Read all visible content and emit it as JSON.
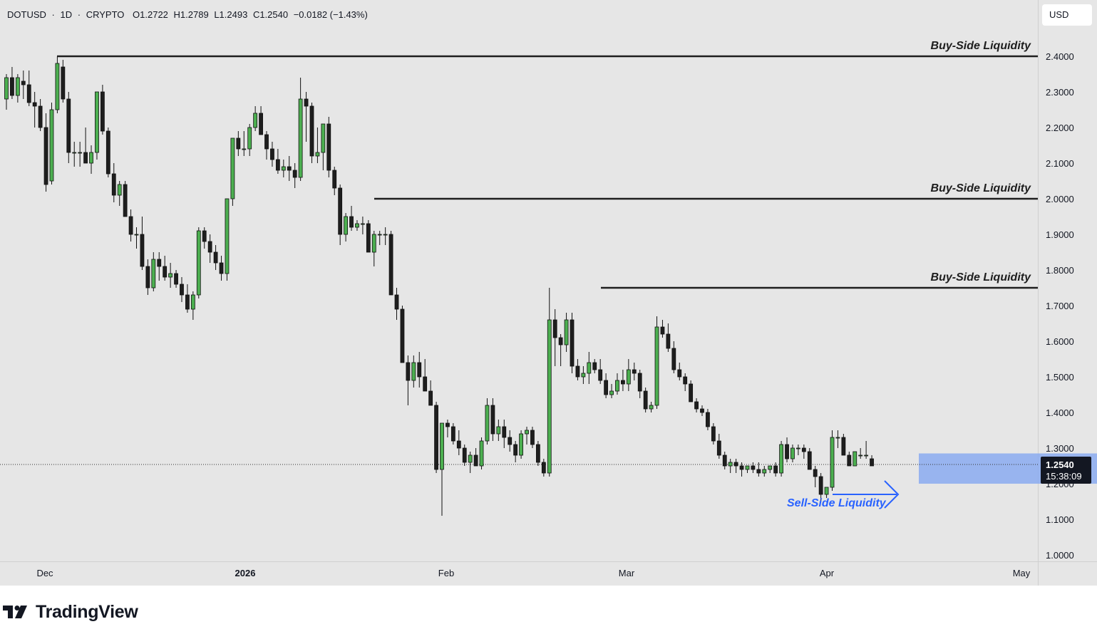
{
  "header": {
    "symbol": "DOTUSD",
    "sep1": "·",
    "interval": "1D",
    "sep2": "·",
    "market": "CRYPTO",
    "open": "O1.2722",
    "high": "H1.2789",
    "low": "L1.2493",
    "close": "C1.2540",
    "change": "−0.0182 (−1.43%)"
  },
  "currency": "USD",
  "price_tag": {
    "price": "1.2540",
    "countdown": "15:38:09"
  },
  "brand": {
    "name": "TradingView"
  },
  "annotations": {
    "buy_side_label": "Buy-Side Liquidity",
    "sell_side_label": "Sell-Side Liquidity"
  },
  "colors": {
    "background": "#e6e6e6",
    "bull": "#4caf50",
    "bear": "#1e1e1e",
    "sell_side": "#2962ff",
    "zone": "#8aaaf0"
  },
  "chart_data": {
    "type": "candlestick",
    "y_ticks": [
      "2.4000",
      "2.3000",
      "2.2000",
      "2.1000",
      "2.0000",
      "1.9000",
      "1.8000",
      "1.7000",
      "1.6000",
      "1.5000",
      "1.4000",
      "1.3000",
      "1.2000",
      "1.1000",
      "1.0000"
    ],
    "x_ticks": [
      "Dec",
      "2026",
      "Feb",
      "Mar",
      "Apr",
      "May"
    ],
    "ylim": [
      1.0,
      2.4
    ],
    "buy_side_liquidity_levels": [
      2.4,
      2.0,
      1.75
    ],
    "sell_side_liquidity_level": 1.21,
    "zone": {
      "low": 1.2,
      "high": 1.285
    },
    "last_price": 1.254,
    "candles": [
      [
        2.28,
        2.35,
        2.25,
        2.34
      ],
      [
        2.34,
        2.37,
        2.28,
        2.29
      ],
      [
        2.29,
        2.35,
        2.27,
        2.34
      ],
      [
        2.33,
        2.36,
        2.28,
        2.32
      ],
      [
        2.32,
        2.36,
        2.26,
        2.27
      ],
      [
        2.27,
        2.3,
        2.2,
        2.26
      ],
      [
        2.26,
        2.28,
        2.19,
        2.2
      ],
      [
        2.2,
        2.24,
        2.02,
        2.04
      ],
      [
        2.05,
        2.27,
        2.04,
        2.25
      ],
      [
        2.25,
        2.4,
        2.24,
        2.38
      ],
      [
        2.37,
        2.39,
        2.27,
        2.28
      ],
      [
        2.28,
        2.3,
        2.1,
        2.13
      ],
      [
        2.13,
        2.16,
        2.09,
        2.13
      ],
      [
        2.13,
        2.16,
        2.09,
        2.13
      ],
      [
        2.13,
        2.2,
        2.1,
        2.1
      ],
      [
        2.1,
        2.15,
        2.07,
        2.13
      ],
      [
        2.13,
        2.29,
        2.11,
        2.3
      ],
      [
        2.3,
        2.32,
        2.18,
        2.19
      ],
      [
        2.19,
        2.2,
        2.06,
        2.07
      ],
      [
        2.07,
        2.1,
        1.99,
        2.01
      ],
      [
        2.01,
        2.05,
        1.98,
        2.04
      ],
      [
        2.04,
        2.05,
        1.95,
        1.95
      ],
      [
        1.95,
        1.97,
        1.88,
        1.9
      ],
      [
        1.9,
        1.92,
        1.86,
        1.9
      ],
      [
        1.9,
        1.95,
        1.8,
        1.81
      ],
      [
        1.81,
        1.83,
        1.73,
        1.75
      ],
      [
        1.75,
        1.85,
        1.74,
        1.83
      ],
      [
        1.83,
        1.85,
        1.77,
        1.81
      ],
      [
        1.81,
        1.84,
        1.77,
        1.78
      ],
      [
        1.78,
        1.82,
        1.75,
        1.79
      ],
      [
        1.79,
        1.8,
        1.75,
        1.76
      ],
      [
        1.76,
        1.78,
        1.71,
        1.73
      ],
      [
        1.73,
        1.76,
        1.68,
        1.69
      ],
      [
        1.69,
        1.74,
        1.66,
        1.73
      ],
      [
        1.73,
        1.92,
        1.72,
        1.91
      ],
      [
        1.91,
        1.92,
        1.86,
        1.88
      ],
      [
        1.88,
        1.9,
        1.82,
        1.85
      ],
      [
        1.85,
        1.87,
        1.8,
        1.82
      ],
      [
        1.82,
        1.84,
        1.77,
        1.79
      ],
      [
        1.79,
        2.0,
        1.77,
        2.0
      ],
      [
        2.0,
        2.17,
        1.98,
        2.17
      ],
      [
        2.17,
        2.19,
        2.12,
        2.14
      ],
      [
        2.14,
        2.19,
        2.12,
        2.14
      ],
      [
        2.14,
        2.21,
        2.12,
        2.2
      ],
      [
        2.2,
        2.26,
        2.19,
        2.24
      ],
      [
        2.24,
        2.26,
        2.18,
        2.18
      ],
      [
        2.18,
        2.19,
        2.11,
        2.14
      ],
      [
        2.14,
        2.16,
        2.09,
        2.11
      ],
      [
        2.11,
        2.14,
        2.07,
        2.08
      ],
      [
        2.08,
        2.11,
        2.06,
        2.09
      ],
      [
        2.09,
        2.12,
        2.05,
        2.08
      ],
      [
        2.08,
        2.1,
        2.03,
        2.06
      ],
      [
        2.06,
        2.34,
        2.05,
        2.28
      ],
      [
        2.28,
        2.3,
        2.16,
        2.26
      ],
      [
        2.26,
        2.27,
        2.1,
        2.12
      ],
      [
        2.12,
        2.2,
        2.1,
        2.13
      ],
      [
        2.13,
        2.21,
        2.08,
        2.21
      ],
      [
        2.21,
        2.23,
        2.06,
        2.08
      ],
      [
        2.08,
        2.09,
        2.01,
        2.03
      ],
      [
        2.03,
        2.04,
        1.87,
        1.9
      ],
      [
        1.9,
        1.96,
        1.88,
        1.95
      ],
      [
        1.95,
        1.98,
        1.91,
        1.92
      ],
      [
        1.92,
        1.94,
        1.91,
        1.93
      ],
      [
        1.93,
        1.95,
        1.9,
        1.93
      ],
      [
        1.93,
        1.94,
        1.85,
        1.85
      ],
      [
        1.85,
        1.91,
        1.81,
        1.9
      ],
      [
        1.9,
        1.91,
        1.87,
        1.9
      ],
      [
        1.9,
        1.92,
        1.87,
        1.9
      ],
      [
        1.9,
        1.91,
        1.73,
        1.73
      ],
      [
        1.73,
        1.75,
        1.66,
        1.69
      ],
      [
        1.69,
        1.7,
        1.54,
        1.54
      ],
      [
        1.54,
        1.56,
        1.42,
        1.49
      ],
      [
        1.49,
        1.56,
        1.47,
        1.54
      ],
      [
        1.54,
        1.57,
        1.47,
        1.5
      ],
      [
        1.5,
        1.55,
        1.47,
        1.46
      ],
      [
        1.46,
        1.49,
        1.42,
        1.42
      ],
      [
        1.42,
        1.43,
        1.23,
        1.24
      ],
      [
        1.24,
        1.37,
        1.11,
        1.37
      ],
      [
        1.37,
        1.38,
        1.33,
        1.36
      ],
      [
        1.36,
        1.37,
        1.31,
        1.32
      ],
      [
        1.32,
        1.35,
        1.28,
        1.3
      ],
      [
        1.3,
        1.31,
        1.25,
        1.26
      ],
      [
        1.26,
        1.29,
        1.23,
        1.28
      ],
      [
        1.28,
        1.3,
        1.25,
        1.25
      ],
      [
        1.25,
        1.33,
        1.24,
        1.32
      ],
      [
        1.32,
        1.44,
        1.31,
        1.42
      ],
      [
        1.42,
        1.44,
        1.32,
        1.34
      ],
      [
        1.34,
        1.38,
        1.32,
        1.36
      ],
      [
        1.36,
        1.38,
        1.3,
        1.33
      ],
      [
        1.33,
        1.35,
        1.29,
        1.31
      ],
      [
        1.31,
        1.32,
        1.26,
        1.28
      ],
      [
        1.28,
        1.35,
        1.27,
        1.34
      ],
      [
        1.34,
        1.36,
        1.31,
        1.35
      ],
      [
        1.35,
        1.36,
        1.3,
        1.31
      ],
      [
        1.31,
        1.32,
        1.25,
        1.26
      ],
      [
        1.26,
        1.27,
        1.22,
        1.23
      ],
      [
        1.23,
        1.75,
        1.22,
        1.66
      ],
      [
        1.66,
        1.69,
        1.53,
        1.61
      ],
      [
        1.61,
        1.62,
        1.53,
        1.59
      ],
      [
        1.59,
        1.68,
        1.57,
        1.66
      ],
      [
        1.66,
        1.68,
        1.51,
        1.53
      ],
      [
        1.53,
        1.55,
        1.49,
        1.5
      ],
      [
        1.5,
        1.53,
        1.48,
        1.51
      ],
      [
        1.51,
        1.57,
        1.48,
        1.54
      ],
      [
        1.54,
        1.55,
        1.51,
        1.52
      ],
      [
        1.52,
        1.55,
        1.48,
        1.49
      ],
      [
        1.49,
        1.51,
        1.44,
        1.45
      ],
      [
        1.45,
        1.48,
        1.44,
        1.46
      ],
      [
        1.46,
        1.51,
        1.45,
        1.49
      ],
      [
        1.49,
        1.52,
        1.46,
        1.48
      ],
      [
        1.48,
        1.55,
        1.46,
        1.52
      ],
      [
        1.52,
        1.54,
        1.49,
        1.51
      ],
      [
        1.51,
        1.52,
        1.44,
        1.46
      ],
      [
        1.46,
        1.47,
        1.4,
        1.41
      ],
      [
        1.41,
        1.43,
        1.4,
        1.42
      ],
      [
        1.42,
        1.67,
        1.41,
        1.64
      ],
      [
        1.64,
        1.66,
        1.61,
        1.62
      ],
      [
        1.62,
        1.65,
        1.57,
        1.58
      ],
      [
        1.58,
        1.6,
        1.51,
        1.52
      ],
      [
        1.52,
        1.54,
        1.49,
        1.5
      ],
      [
        1.5,
        1.51,
        1.46,
        1.48
      ],
      [
        1.48,
        1.49,
        1.43,
        1.43
      ],
      [
        1.43,
        1.44,
        1.4,
        1.41
      ],
      [
        1.41,
        1.42,
        1.39,
        1.4
      ],
      [
        1.4,
        1.41,
        1.35,
        1.36
      ],
      [
        1.36,
        1.37,
        1.31,
        1.32
      ],
      [
        1.32,
        1.34,
        1.27,
        1.28
      ],
      [
        1.28,
        1.29,
        1.24,
        1.25
      ],
      [
        1.25,
        1.27,
        1.23,
        1.26
      ],
      [
        1.26,
        1.27,
        1.23,
        1.25
      ],
      [
        1.25,
        1.26,
        1.22,
        1.24
      ],
      [
        1.24,
        1.25,
        1.23,
        1.25
      ],
      [
        1.25,
        1.26,
        1.23,
        1.24
      ],
      [
        1.24,
        1.26,
        1.22,
        1.23
      ],
      [
        1.23,
        1.25,
        1.22,
        1.24
      ],
      [
        1.24,
        1.25,
        1.23,
        1.25
      ],
      [
        1.25,
        1.26,
        1.22,
        1.23
      ],
      [
        1.23,
        1.32,
        1.22,
        1.31
      ],
      [
        1.31,
        1.33,
        1.26,
        1.27
      ],
      [
        1.27,
        1.31,
        1.26,
        1.3
      ],
      [
        1.3,
        1.31,
        1.28,
        1.3
      ],
      [
        1.3,
        1.31,
        1.27,
        1.29
      ],
      [
        1.29,
        1.3,
        1.24,
        1.24
      ],
      [
        1.24,
        1.25,
        1.19,
        1.22
      ],
      [
        1.22,
        1.23,
        1.15,
        1.17
      ],
      [
        1.17,
        1.19,
        1.16,
        1.19
      ],
      [
        1.19,
        1.35,
        1.18,
        1.33
      ],
      [
        1.33,
        1.35,
        1.3,
        1.33
      ],
      [
        1.33,
        1.34,
        1.28,
        1.28
      ],
      [
        1.28,
        1.29,
        1.25,
        1.25
      ],
      [
        1.25,
        1.29,
        1.25,
        1.29
      ],
      [
        1.28,
        1.3,
        1.27,
        1.28
      ],
      [
        1.28,
        1.32,
        1.27,
        1.28
      ],
      [
        1.27,
        1.28,
        1.25,
        1.25
      ]
    ]
  }
}
